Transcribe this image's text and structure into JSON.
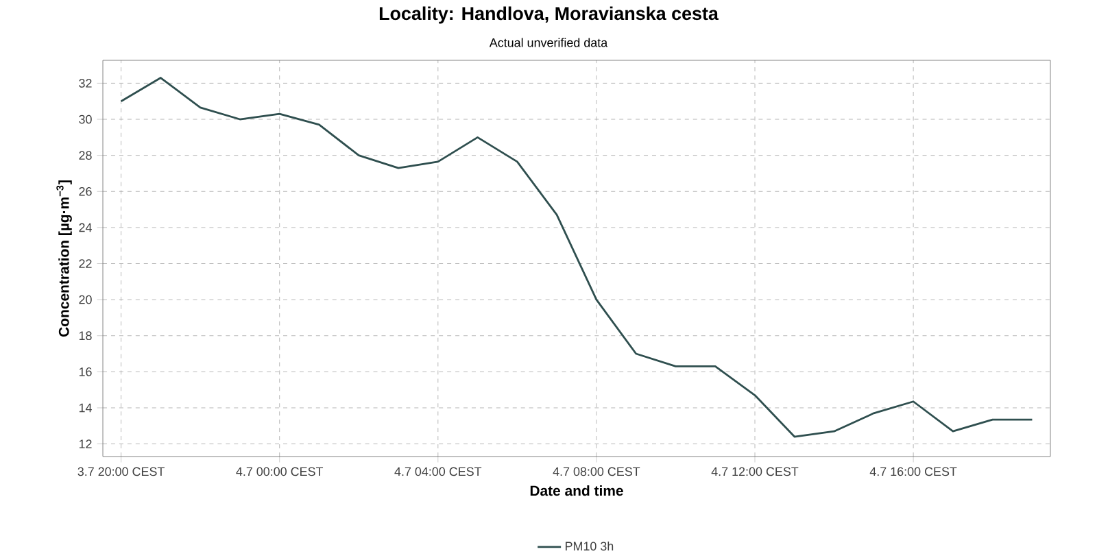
{
  "chart_data": {
    "type": "line",
    "title": "Locality: Handlova, Moravianska cesta",
    "subtitle": "Actual unverified data",
    "xlabel": "Date and time",
    "ylabel": "Concentration [µg·m$^{−3}$]",
    "categories": [
      "3.7 20:00 CEST",
      null,
      null,
      null,
      "4.7 00:00 CEST",
      null,
      null,
      null,
      "4.7 04:00 CEST",
      null,
      null,
      null,
      "4.7 08:00 CEST",
      null,
      null,
      null,
      "4.7 12:00 CEST",
      null,
      null,
      null,
      "4.7 16:00 CEST",
      null,
      null,
      null
    ],
    "series": [
      {
        "name": "PM10 3h",
        "color": "#2f4f4f",
        "values": [
          31.0,
          32.3,
          30.65,
          30.0,
          30.3,
          29.7,
          28.0,
          27.3,
          27.65,
          29.0,
          27.65,
          24.7,
          20.0,
          17.0,
          16.3,
          16.3,
          14.7,
          12.4,
          12.7,
          13.7,
          14.35,
          12.7,
          13.35,
          13.35
        ]
      }
    ],
    "ylim": [
      11.3,
      33.27
    ],
    "yticks": [
      12,
      14,
      16,
      18,
      20,
      22,
      24,
      26,
      28,
      30,
      32
    ],
    "grid": true,
    "legend": "bottom",
    "marker": "none",
    "line_style": "solid"
  }
}
